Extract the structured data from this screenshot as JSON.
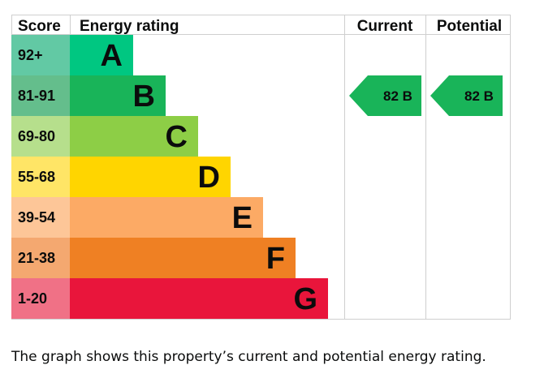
{
  "chart_data": {
    "type": "bar",
    "headers": {
      "score": "Score",
      "rating": "Energy rating",
      "current": "Current",
      "potential": "Potential"
    },
    "bands": [
      {
        "letter": "A",
        "range": "92+",
        "color": "#00c781",
        "score_color": "#62c9a4"
      },
      {
        "letter": "B",
        "range": "81-91",
        "color": "#19b459",
        "score_color": "#64be8c"
      },
      {
        "letter": "C",
        "range": "69-80",
        "color": "#8dce46",
        "score_color": "#b6df8c"
      },
      {
        "letter": "D",
        "range": "55-68",
        "color": "#ffd500",
        "score_color": "#ffe566"
      },
      {
        "letter": "E",
        "range": "39-54",
        "color": "#fcaa65",
        "score_color": "#fdc698"
      },
      {
        "letter": "F",
        "range": "21-38",
        "color": "#ef8023",
        "score_color": "#f4a870"
      },
      {
        "letter": "G",
        "range": "1-20",
        "color": "#e9153b",
        "score_color": "#f07186"
      }
    ],
    "current": {
      "value": 82,
      "band": "B",
      "label": "82  B",
      "color": "#19b459"
    },
    "potential": {
      "value": 82,
      "band": "B",
      "label": "82  B",
      "color": "#19b459"
    }
  },
  "caption": "The graph shows this property’s current and potential energy rating."
}
